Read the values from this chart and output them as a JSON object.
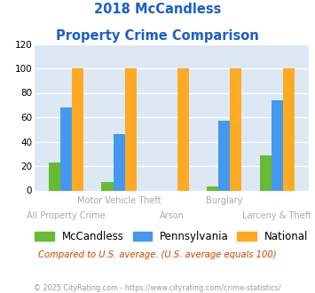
{
  "title_line1": "2018 McCandless",
  "title_line2": "Property Crime Comparison",
  "categories": [
    "All Property Crime",
    "Motor Vehicle Theft",
    "Arson",
    "Burglary",
    "Larceny & Theft"
  ],
  "mccandless": [
    23,
    7,
    0,
    3,
    29
  ],
  "pennsylvania": [
    68,
    46,
    0,
    57,
    74
  ],
  "national": [
    100,
    100,
    100,
    100,
    100
  ],
  "color_mccandless": "#66bb33",
  "color_pennsylvania": "#4499ee",
  "color_national": "#ffaa22",
  "ylim": [
    0,
    120
  ],
  "yticks": [
    0,
    20,
    40,
    60,
    80,
    100,
    120
  ],
  "title_color": "#1a5fc8",
  "bg_color": "#dce9f5",
  "legend_labels": [
    "McCandless",
    "Pennsylvania",
    "National"
  ],
  "note": "Compared to U.S. average. (U.S. average equals 100)",
  "footer": "© 2025 CityRating.com - https://www.cityrating.com/crime-statistics/",
  "note_color": "#cc4400",
  "footer_color": "#999999",
  "label_color": "#aaaaaa",
  "label_fontsize": 7.0,
  "title_fontsize": 10.5,
  "bar_width": 0.22
}
